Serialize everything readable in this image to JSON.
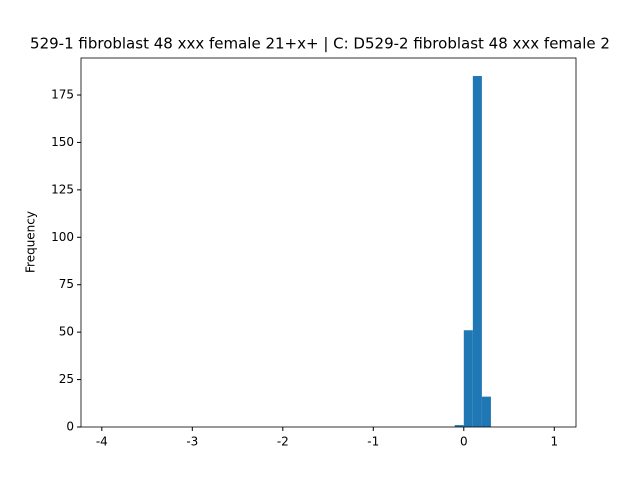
{
  "chart_data": {
    "type": "histogram",
    "title": "529-1 fibroblast 48 xxx female 21+x+ | C: D529-2 fibroblast 48 xxx female 2",
    "ylabel": "Frequency",
    "bins": [
      -0.1,
      0,
      0.1,
      0.2,
      0.3
    ],
    "values": [
      1,
      51,
      185,
      16
    ],
    "color": "#1f77b4",
    "xlim": [
      -4.23,
      1.24
    ],
    "xticks": [
      -4,
      -3,
      -2,
      -1,
      0,
      1
    ],
    "ylim": [
      0,
      194.5
    ],
    "yticks": [
      0,
      25,
      50,
      75,
      100,
      125,
      150,
      175
    ]
  }
}
